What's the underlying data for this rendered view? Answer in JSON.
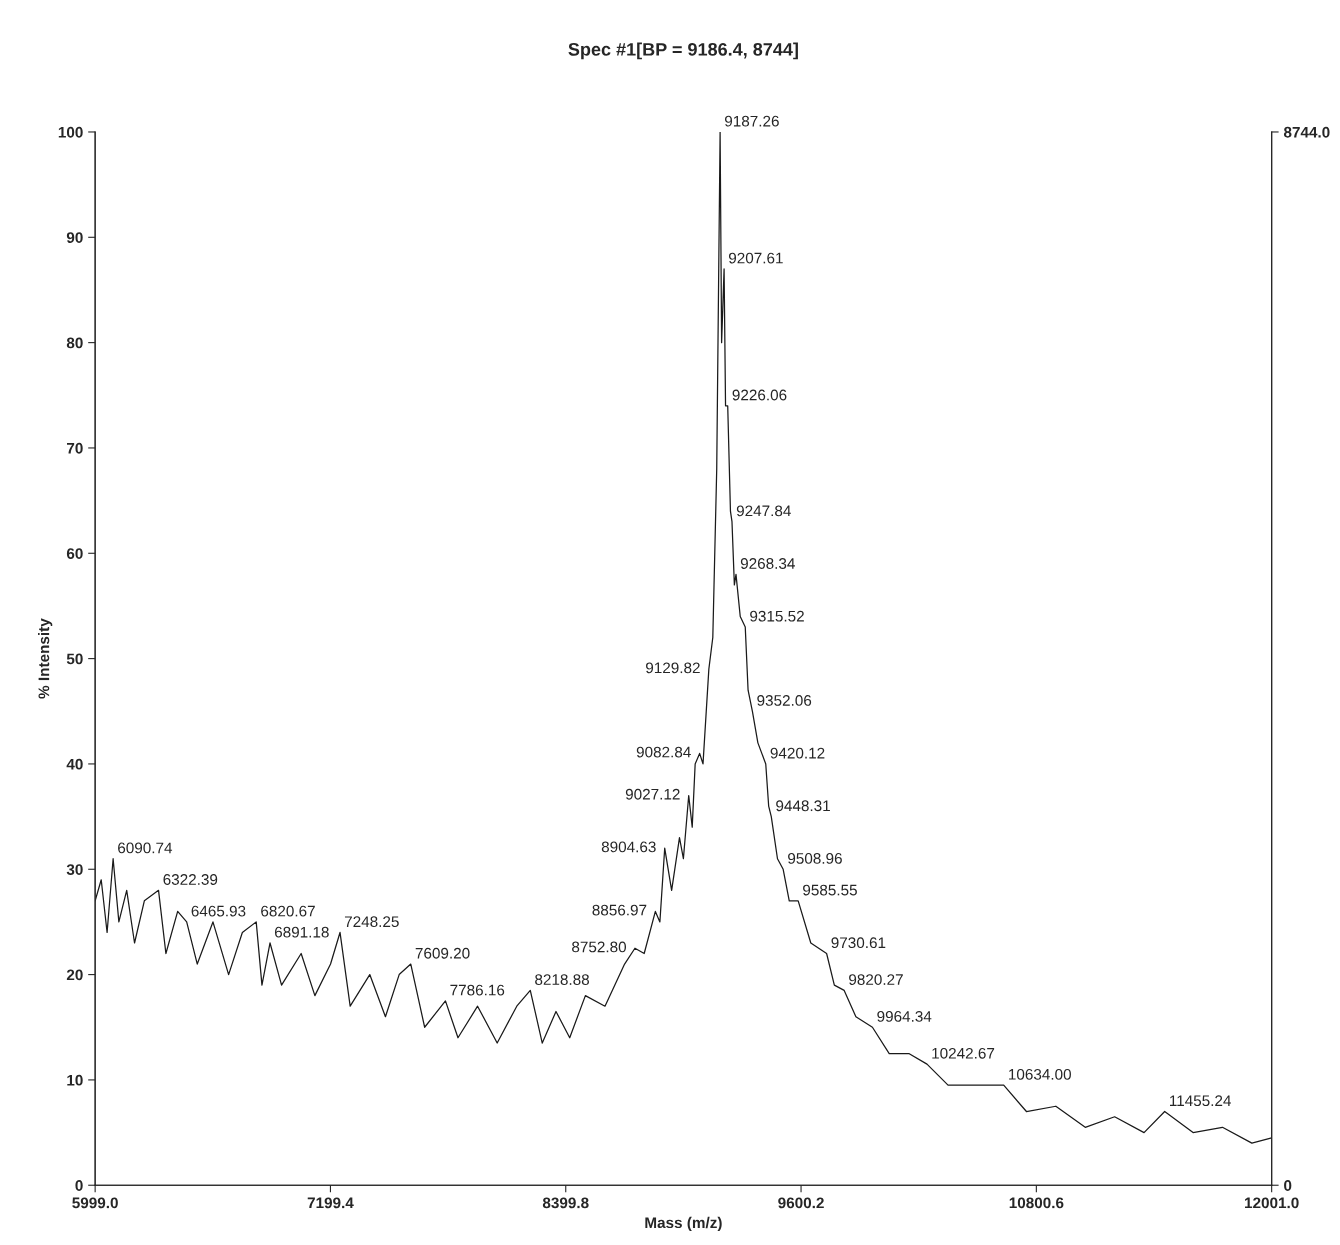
{
  "chart_data": {
    "type": "line",
    "title": "Spec #1[BP = 9186.4, 8744]",
    "xlabel": "Mass (m/z)",
    "ylabel": "% Intensity",
    "x": [
      5999,
      6030,
      6060,
      6090.74,
      6120,
      6160,
      6200,
      6250,
      6322.39,
      6360,
      6420,
      6465.93,
      6520,
      6600,
      6680,
      6750,
      6820.67,
      6850,
      6891.18,
      6950,
      7050,
      7120,
      7200,
      7248.25,
      7300,
      7400,
      7480,
      7550,
      7609.2,
      7680,
      7786.16,
      7850,
      7950,
      8050,
      8150,
      8218.88,
      8280,
      8350,
      8420,
      8500,
      8600,
      8700,
      8752.8,
      8800,
      8856.97,
      8880,
      8904.63,
      8940,
      8980,
      9000,
      9027.12,
      9045,
      9060,
      9082.84,
      9100,
      9129.82,
      9150,
      9170,
      9187.26,
      9195,
      9207.61,
      9215,
      9226.06,
      9240,
      9247.84,
      9260,
      9268.34,
      9290,
      9315.52,
      9330,
      9352.06,
      9380,
      9420.12,
      9435,
      9448.31,
      9480,
      9508.96,
      9540,
      9585.55,
      9650,
      9730.61,
      9770,
      9820.27,
      9880,
      9964.34,
      10050,
      10150,
      10242.67,
      10350,
      10500,
      10634,
      10750,
      10900,
      11050,
      11200,
      11350,
      11455.24,
      11600,
      11750,
      11900,
      12001
    ],
    "series": [
      {
        "color": "#1a1a1a",
        "values": [
          27,
          29,
          24,
          31,
          25,
          28,
          23,
          27,
          28,
          22,
          26,
          25,
          21,
          25,
          20,
          24,
          25,
          19,
          23,
          19,
          22,
          18,
          21,
          24,
          17,
          20,
          16,
          20,
          21,
          15,
          17.5,
          14,
          17,
          13.5,
          17,
          18.5,
          13.5,
          16.5,
          14,
          18,
          17,
          21,
          22.5,
          22,
          26,
          25,
          32,
          28,
          33,
          31,
          37,
          34,
          40,
          41,
          40,
          49,
          52,
          68,
          100,
          80,
          87,
          74,
          74,
          64,
          63,
          57,
          58,
          54,
          53,
          47,
          45,
          42,
          40,
          36,
          35,
          31,
          30,
          27,
          27,
          23,
          22,
          19,
          18.5,
          16,
          15,
          12.5,
          12.5,
          11.5,
          9.5,
          9.5,
          9.5,
          7,
          7.5,
          5.5,
          6.5,
          5,
          7,
          5,
          5.5,
          4,
          4.5
        ]
      }
    ],
    "xlim": [
      5999,
      12001
    ],
    "xticks": [
      {
        "value": 5999,
        "label": "5999.0"
      },
      7199.4,
      8399.8,
      9600.2,
      10800.6,
      {
        "value": 12001,
        "label": "12001.0"
      }
    ],
    "ylim": [
      0,
      100
    ],
    "yticks": [
      0,
      10,
      20,
      30,
      40,
      50,
      60,
      70,
      80,
      90,
      100
    ],
    "y2lim": [
      0,
      8744.0
    ],
    "y2ticks": [
      0,
      {
        "value": 8744,
        "label": "8744.0"
      }
    ],
    "grid": false,
    "legend": false,
    "line_style": "solid",
    "marker": "none",
    "annotations": [
      {
        "text": "6090.74",
        "x": 6090.74,
        "y": 31
      },
      {
        "text": "6322.39",
        "x": 6322.39,
        "y": 28
      },
      {
        "text": "6465.93",
        "x": 6465.93,
        "y": 25
      },
      {
        "text": "6820.67",
        "x": 6820.67,
        "y": 25
      },
      {
        "text": "6891.18",
        "x": 6891.18,
        "y": 23
      },
      {
        "text": "7248.25",
        "x": 7248.25,
        "y": 24
      },
      {
        "text": "7609.20",
        "x": 7609.2,
        "y": 21
      },
      {
        "text": "7786.16",
        "x": 7786.16,
        "y": 17.5
      },
      {
        "text": "8218.88",
        "x": 8218.88,
        "y": 18.5
      },
      {
        "text": "8752.80",
        "x": 8752.8,
        "y": 22.5
      },
      {
        "text": "8856.97",
        "x": 8856.97,
        "y": 26
      },
      {
        "text": "8904.63",
        "x": 8904.63,
        "y": 32
      },
      {
        "text": "9027.12",
        "x": 9027.12,
        "y": 37
      },
      {
        "text": "9082.84",
        "x": 9082.84,
        "y": 41
      },
      {
        "text": "9129.82",
        "x": 9129.82,
        "y": 49
      },
      {
        "text": "9187.26",
        "x": 9187.26,
        "y": 100
      },
      {
        "text": "9207.61",
        "x": 9207.61,
        "y": 87
      },
      {
        "text": "9226.06",
        "x": 9226.06,
        "y": 74
      },
      {
        "text": "9247.84",
        "x": 9247.84,
        "y": 63
      },
      {
        "text": "9268.34",
        "x": 9268.34,
        "y": 58
      },
      {
        "text": "9315.52",
        "x": 9315.52,
        "y": 53
      },
      {
        "text": "9352.06",
        "x": 9352.06,
        "y": 45
      },
      {
        "text": "9420.12",
        "x": 9420.12,
        "y": 40
      },
      {
        "text": "9448.31",
        "x": 9448.31,
        "y": 35
      },
      {
        "text": "9508.96",
        "x": 9508.96,
        "y": 30
      },
      {
        "text": "9585.55",
        "x": 9585.55,
        "y": 27
      },
      {
        "text": "9730.61",
        "x": 9730.61,
        "y": 22
      },
      {
        "text": "9820.27",
        "x": 9820.27,
        "y": 18.5
      },
      {
        "text": "9964.34",
        "x": 9964.34,
        "y": 15
      },
      {
        "text": "10242.67",
        "x": 10242.67,
        "y": 11.5
      },
      {
        "text": "10634.00",
        "x": 10634.0,
        "y": 9.5
      },
      {
        "text": "11455.24",
        "x": 11455.24,
        "y": 7
      }
    ]
  }
}
